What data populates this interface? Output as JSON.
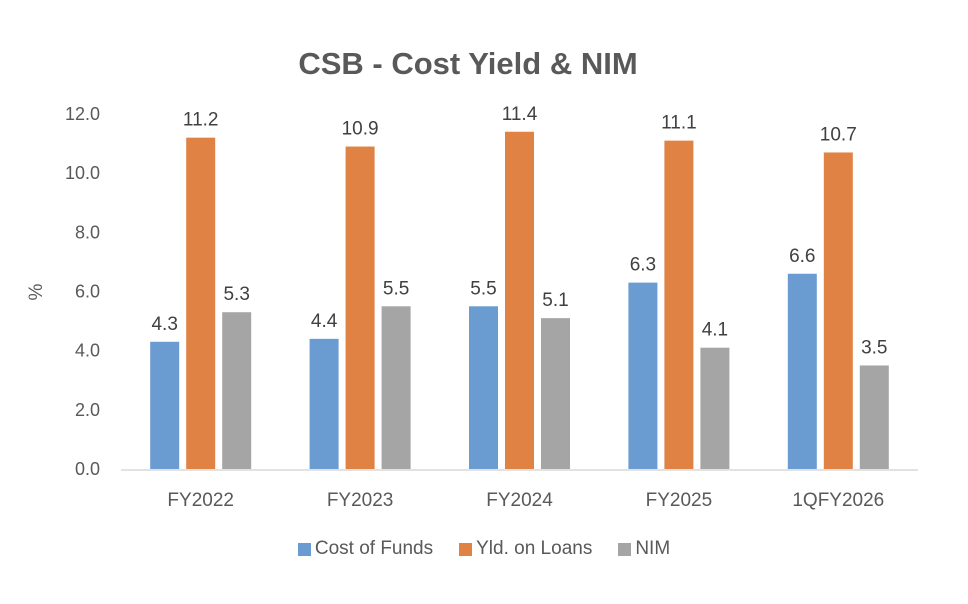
{
  "chart_data": {
    "type": "bar",
    "title": "CSB - Cost Yield & NIM",
    "xlabel": "",
    "ylabel": "%",
    "ylim": [
      0,
      12
    ],
    "yticks": [
      0,
      2,
      4,
      6,
      8,
      10,
      12
    ],
    "ytick_labels": [
      "0.0",
      "2.0",
      "4.0",
      "6.0",
      "8.0",
      "10.0",
      "12.0"
    ],
    "grid": false,
    "legend_position": "bottom",
    "categories": [
      "FY2022",
      "FY2023",
      "FY2024",
      "FY2025",
      "1QFY2026"
    ],
    "series": [
      {
        "name": "Cost of Funds",
        "color": "#6A9BD1",
        "values": [
          4.3,
          4.4,
          5.5,
          6.3,
          6.6
        ],
        "labels": [
          "4.3",
          "4.4",
          "5.5",
          "6.3",
          "6.6"
        ]
      },
      {
        "name": "Yld. on Loans",
        "color": "#E08244",
        "values": [
          11.2,
          10.9,
          11.4,
          11.1,
          10.7
        ],
        "labels": [
          "11.2",
          "10.9",
          "11.4",
          "11.1",
          "10.7"
        ]
      },
      {
        "name": "NIM",
        "color": "#A5A5A5",
        "values": [
          5.3,
          5.5,
          5.1,
          4.1,
          3.5
        ],
        "labels": [
          "5.3",
          "5.5",
          "5.1",
          "4.1",
          "3.5"
        ]
      }
    ]
  }
}
